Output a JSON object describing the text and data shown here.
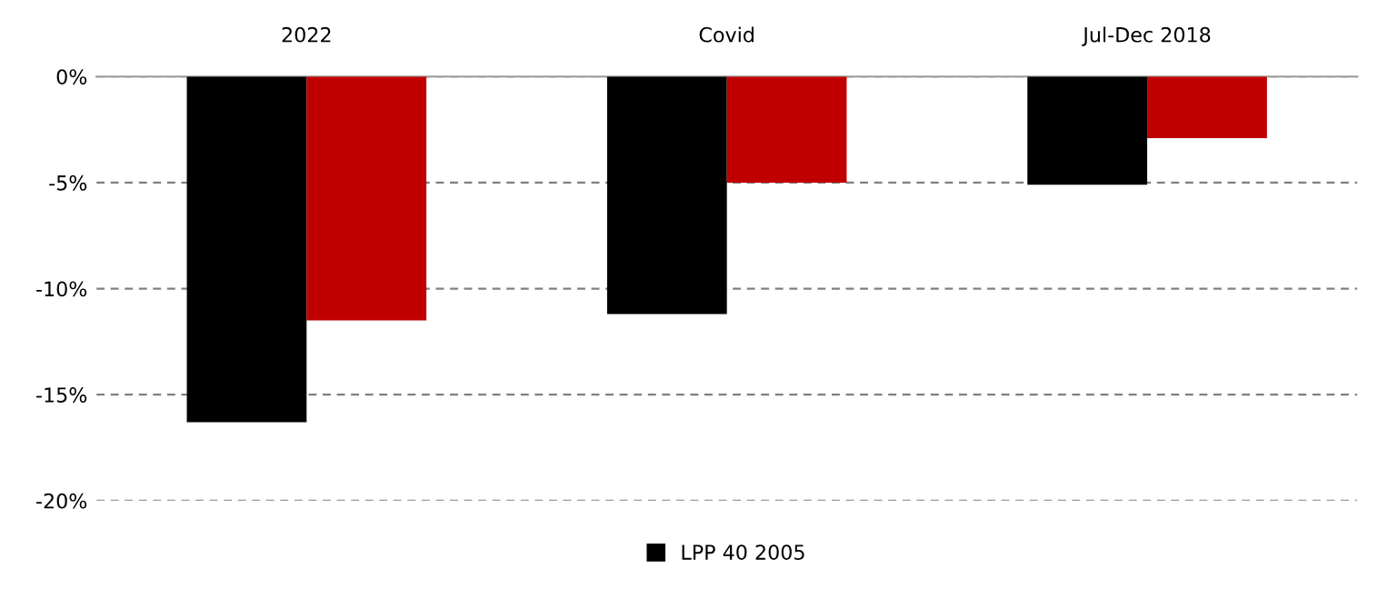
{
  "chart_data": {
    "type": "bar",
    "categories": [
      "2022",
      "Covid",
      "Jul-Dec 2018"
    ],
    "series": [
      {
        "name": "LPP 40 2005",
        "color": "#000000",
        "values": [
          -16.3,
          -11.2,
          -5.1
        ]
      },
      {
        "color": "#c00000",
        "values": [
          -11.5,
          -5.0,
          -2.9
        ]
      }
    ],
    "ylim": [
      -20,
      0
    ],
    "yticks": [
      {
        "value": 0,
        "label": "0%"
      },
      {
        "value": -5,
        "label": "-5%"
      },
      {
        "value": -10,
        "label": "-10%"
      },
      {
        "value": -15,
        "label": "-15%"
      },
      {
        "value": -20,
        "label": "-20%"
      }
    ],
    "grid": "y",
    "line_style": "dashed",
    "legend": "bottom"
  }
}
